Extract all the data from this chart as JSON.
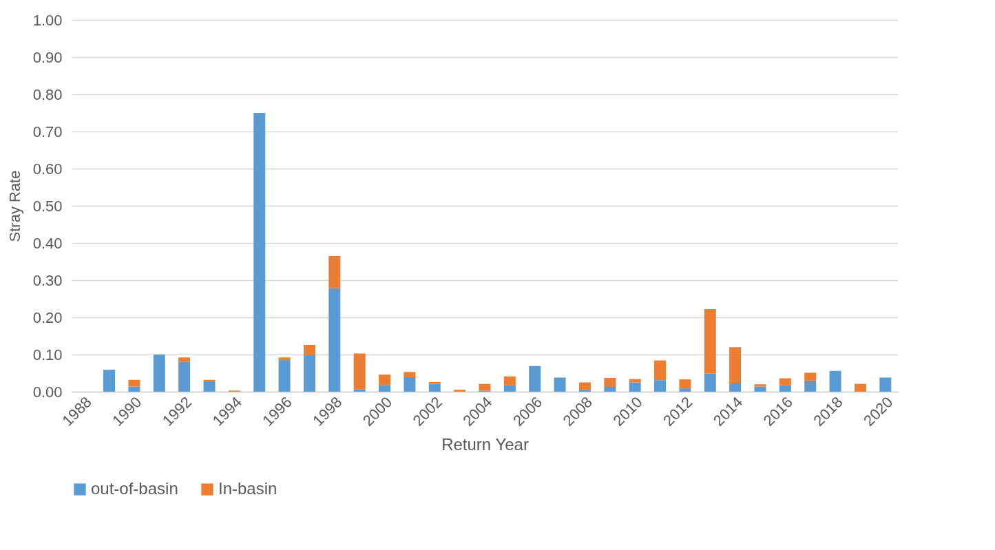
{
  "chart_data": {
    "type": "bar",
    "stacked": true,
    "xlabel": "Return Year",
    "ylabel": "Stray Rate",
    "categories": [
      "1988",
      null,
      "1990",
      null,
      "1992",
      null,
      "1994",
      null,
      "1996",
      null,
      "1998",
      null,
      "2000",
      null,
      "2002",
      null,
      "2004",
      null,
      "2006",
      null,
      "2008",
      null,
      "2010",
      null,
      "2012",
      null,
      "2014",
      null,
      "2016",
      null,
      "2018",
      null,
      "2020"
    ],
    "series": [
      {
        "name": "out-of-basin",
        "color": "#5b9bd5",
        "values": [
          0,
          0.059,
          0.014,
          0.1,
          0.08,
          0.028,
          0,
          0.75,
          0.085,
          0.098,
          0.278,
          0.006,
          0.018,
          0.039,
          0.021,
          0,
          0.003,
          0.017,
          0.069,
          0.038,
          0.005,
          0.013,
          0.025,
          0.031,
          0.009,
          0.049,
          0.024,
          0.014,
          0.017,
          0.03,
          0.056,
          0,
          0.038
        ]
      },
      {
        "name": "In-basin",
        "color": "#ed7d31",
        "values": [
          0,
          0,
          0.018,
          0,
          0.012,
          0.004,
          0.003,
          0,
          0.007,
          0.028,
          0.087,
          0.097,
          0.028,
          0.014,
          0.005,
          0.005,
          0.018,
          0.024,
          0,
          0,
          0.02,
          0.024,
          0.009,
          0.053,
          0.024,
          0.173,
          0.096,
          0.006,
          0.019,
          0.021,
          0,
          0.021,
          0
        ]
      }
    ],
    "ylim": [
      0,
      1
    ],
    "yticks": [
      {
        "value": 0,
        "label": "0.00"
      },
      {
        "value": 0.1,
        "label": "0.10"
      },
      {
        "value": 0.2,
        "label": "0.20"
      },
      {
        "value": 0.3,
        "label": "0.30"
      },
      {
        "value": 0.4,
        "label": "0.40"
      },
      {
        "value": 0.5,
        "label": "0.50"
      },
      {
        "value": 0.6,
        "label": "0.60"
      },
      {
        "value": 0.7,
        "label": "0.70"
      },
      {
        "value": 0.8,
        "label": "0.80"
      },
      {
        "value": 0.9,
        "label": "0.90"
      },
      {
        "value": 1,
        "label": "1.00"
      }
    ],
    "grid": "y",
    "legend": "bottom"
  }
}
